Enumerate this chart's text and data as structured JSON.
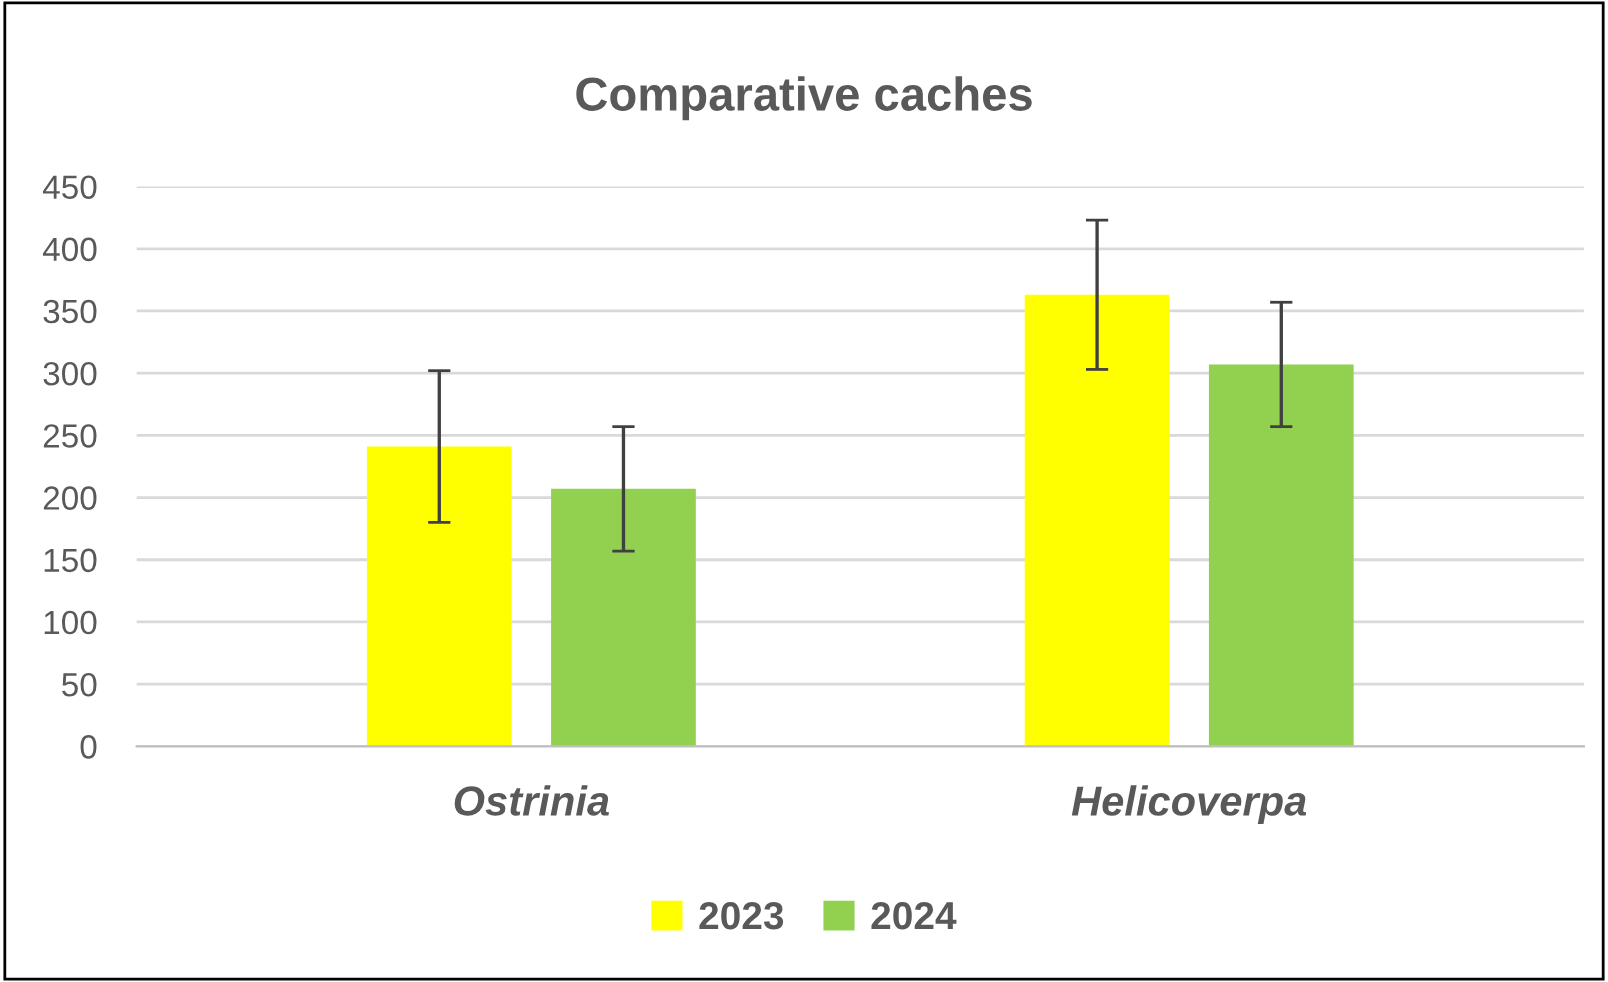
{
  "chart_data": {
    "type": "bar",
    "title": "Comparative caches",
    "categories": [
      "Ostrinia",
      "Helicoverpa"
    ],
    "series": [
      {
        "name": "2023",
        "color": "#ffff00",
        "values": [
          241,
          363
        ],
        "errors": [
          61,
          60
        ]
      },
      {
        "name": "2024",
        "color": "#92d050",
        "values": [
          207,
          307
        ],
        "errors": [
          50,
          50
        ]
      }
    ],
    "ylim": [
      0,
      450
    ],
    "yticks": [
      0,
      50,
      100,
      150,
      200,
      250,
      300,
      350,
      400,
      450
    ],
    "grid": "y",
    "legend": "bottom"
  }
}
